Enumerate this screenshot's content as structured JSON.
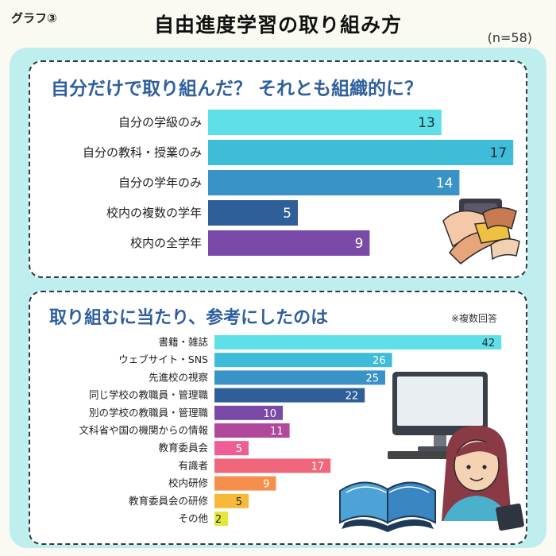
{
  "header": {
    "tag": "グラフ③",
    "title": "自由進度学習の取り組み方",
    "sample_size": "(n=58)"
  },
  "colors": {
    "background": "#fbfaf2",
    "panel": "#bfeeee",
    "title_blue": "#2f5f9e"
  },
  "chart_data": [
    {
      "type": "bar",
      "orientation": "horizontal",
      "title": "自分だけで取り組んだ？ それとも組織的に？",
      "categories": [
        "自分の学級のみ",
        "自分の教科・授業のみ",
        "自分の学年のみ",
        "校内の複数の学年",
        "校内の全学年"
      ],
      "values": [
        13,
        17,
        14,
        5,
        9
      ],
      "colors": [
        "#5fe0e8",
        "#3fbcd8",
        "#3a93c6",
        "#2e5f99",
        "#7a4aa8"
      ]
    },
    {
      "type": "bar",
      "orientation": "horizontal",
      "title": "取り組むに当たり、参考にしたのは",
      "note": "※複数回答",
      "categories": [
        "書籍・雑誌",
        "ウェブサイト・SNS",
        "先進校の視察",
        "同じ学校の教職員・管理職",
        "別の学校の教職員・管理職",
        "文科省や国の機関からの情報",
        "教育委員会",
        "有識者",
        "校内研修",
        "教育委員会の研修",
        "その他"
      ],
      "values": [
        42,
        26,
        25,
        22,
        10,
        11,
        5,
        17,
        9,
        5,
        2
      ],
      "colors": [
        "#5fe0e8",
        "#3fbcd8",
        "#3a93c6",
        "#2e5f99",
        "#7a4aa8",
        "#b0489c",
        "#ee5d93",
        "#f0667a",
        "#f4904c",
        "#f6b93a",
        "#e6e63a"
      ]
    }
  ],
  "icons": {
    "hands": "hands-together-icon",
    "computer": "computer-icon",
    "book": "open-book-icon",
    "person": "teacher-icon"
  }
}
